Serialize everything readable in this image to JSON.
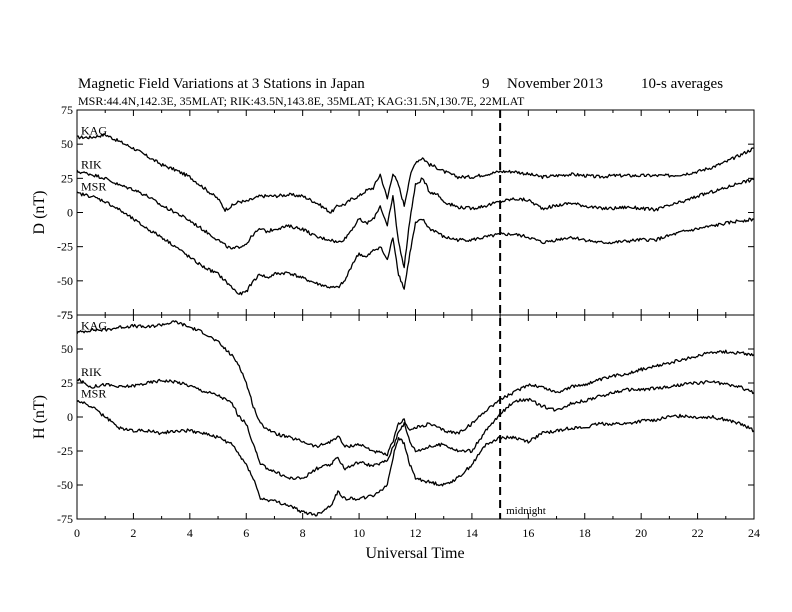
{
  "chart_data": [
    {
      "type": "line",
      "panel": "D",
      "title": "Magnetic Field Variations at 3 Stations in Japan",
      "date_day": "9",
      "date_month": "November",
      "date_year": "2013",
      "averaging": "10-s averages",
      "subtitle": "MSR:44.4N,142.3E, 35MLAT;   RIK:43.5N,143.8E, 35MLAT;   KAG:31.5N,130.7E, 22MLAT",
      "xlabel": "Universal Time",
      "ylabel": "D (nT)",
      "xlim": [
        0,
        24
      ],
      "ylim": [
        -75,
        75
      ],
      "x_ticks": [
        "0",
        "2",
        "4",
        "6",
        "8",
        "10",
        "12",
        "14",
        "16",
        "18",
        "20",
        "22",
        "24"
      ],
      "y_ticks": [
        "75",
        "50",
        "25",
        "0",
        "-25",
        "-50",
        "-75"
      ],
      "x": [
        0,
        0.5,
        1,
        1.5,
        2,
        2.5,
        3,
        3.5,
        4,
        4.5,
        5,
        5.25,
        5.5,
        5.75,
        6,
        6.25,
        6.5,
        6.75,
        7,
        7.5,
        8,
        8.5,
        9,
        9.25,
        9.5,
        9.75,
        10,
        10.25,
        10.5,
        10.75,
        11,
        11.2,
        11.4,
        11.6,
        11.8,
        12,
        12.25,
        12.5,
        12.75,
        13,
        13.5,
        14,
        14.5,
        15,
        15.5,
        16,
        16.5,
        17,
        17.5,
        18,
        18.5,
        19,
        19.5,
        20,
        20.5,
        21,
        21.5,
        22,
        22.5,
        23,
        23.5,
        24
      ],
      "series": [
        {
          "name": "KAG",
          "values": [
            55,
            55,
            57,
            52,
            47,
            41,
            35,
            31,
            26,
            18,
            10,
            2,
            5,
            8,
            8,
            10,
            12,
            12,
            12,
            13,
            12,
            7,
            0,
            5,
            6,
            10,
            12,
            16,
            18,
            28,
            10,
            29,
            20,
            5,
            26,
            37,
            40,
            35,
            33,
            30,
            26,
            26,
            28,
            30,
            30,
            28,
            26,
            27,
            28,
            27,
            26,
            27,
            27,
            27,
            27,
            27,
            28,
            30,
            33,
            37,
            42,
            47
          ]
        },
        {
          "name": "RIK",
          "values": [
            30,
            28,
            25,
            20,
            17,
            12,
            5,
            0,
            -6,
            -13,
            -20,
            -24,
            -27,
            -25,
            -23,
            -16,
            -12,
            -14,
            -12,
            -10,
            -12,
            -18,
            -20,
            -22,
            -19,
            -12,
            -5,
            -8,
            -5,
            5,
            -10,
            12,
            -22,
            -40,
            -5,
            20,
            25,
            15,
            14,
            8,
            4,
            3,
            5,
            8,
            10,
            9,
            3,
            5,
            7,
            5,
            3,
            3,
            4,
            3,
            2,
            5,
            8,
            12,
            15,
            18,
            22,
            24
          ]
        },
        {
          "name": "MSR",
          "values": [
            14,
            12,
            8,
            2,
            -5,
            -12,
            -18,
            -25,
            -33,
            -40,
            -45,
            -50,
            -55,
            -60,
            -58,
            -50,
            -45,
            -48,
            -45,
            -44,
            -48,
            -52,
            -55,
            -55,
            -50,
            -38,
            -30,
            -33,
            -28,
            -25,
            -35,
            -18,
            -45,
            -56,
            -30,
            -8,
            -5,
            -12,
            -14,
            -18,
            -20,
            -20,
            -18,
            -16,
            -16,
            -18,
            -22,
            -20,
            -18,
            -20,
            -22,
            -22,
            -21,
            -20,
            -20,
            -17,
            -14,
            -12,
            -10,
            -8,
            -6,
            -5
          ]
        }
      ]
    },
    {
      "type": "line",
      "panel": "H",
      "xlabel": "Universal Time",
      "ylabel": "H (nT)",
      "xlim": [
        0,
        24
      ],
      "ylim": [
        -75,
        75
      ],
      "x_ticks": [
        "0",
        "2",
        "4",
        "6",
        "8",
        "10",
        "12",
        "14",
        "16",
        "18",
        "20",
        "22",
        "24"
      ],
      "y_ticks": [
        "75",
        "50",
        "25",
        "0",
        "-25",
        "-50",
        "-75"
      ],
      "annotation": "midnight",
      "vertical_line_x": 15,
      "x": [
        0,
        0.5,
        1,
        1.5,
        2,
        2.5,
        3,
        3.5,
        4,
        4.5,
        5,
        5.5,
        5.75,
        6,
        6.25,
        6.5,
        7,
        7.5,
        8,
        8.5,
        9,
        9.25,
        9.5,
        10,
        10.5,
        11,
        11.25,
        11.4,
        11.6,
        11.8,
        12,
        12.5,
        13,
        13.5,
        14,
        14.5,
        15,
        15.5,
        16,
        16.5,
        17,
        17.5,
        18,
        18.5,
        19,
        19.5,
        20,
        20.5,
        21,
        21.5,
        22,
        22.5,
        23,
        23.5,
        24
      ],
      "series": [
        {
          "name": "KAG",
          "values": [
            62,
            64,
            64,
            66,
            67,
            66,
            68,
            70,
            66,
            62,
            55,
            45,
            38,
            25,
            8,
            -5,
            -12,
            -15,
            -18,
            -22,
            -18,
            -14,
            -22,
            -20,
            -25,
            -28,
            -15,
            -5,
            -2,
            -10,
            -8,
            -5,
            -10,
            -12,
            -5,
            5,
            13,
            18,
            24,
            22,
            18,
            22,
            24,
            27,
            30,
            32,
            35,
            37,
            40,
            42,
            45,
            48,
            48,
            47,
            46
          ]
        },
        {
          "name": "RIK",
          "values": [
            28,
            22,
            24,
            22,
            23,
            25,
            27,
            26,
            23,
            19,
            16,
            10,
            0,
            -5,
            -20,
            -35,
            -40,
            -45,
            -45,
            -38,
            -35,
            -30,
            -38,
            -33,
            -36,
            -32,
            -20,
            -10,
            -5,
            -18,
            -25,
            -22,
            -20,
            -25,
            -25,
            -10,
            2,
            12,
            13,
            8,
            5,
            10,
            12,
            15,
            18,
            20,
            20,
            21,
            22,
            24,
            25,
            26,
            24,
            22,
            18
          ]
        },
        {
          "name": "MSR",
          "values": [
            12,
            8,
            0,
            -8,
            -10,
            -10,
            -12,
            -10,
            -10,
            -12,
            -15,
            -20,
            -28,
            -35,
            -45,
            -60,
            -62,
            -65,
            -70,
            -72,
            -65,
            -55,
            -60,
            -60,
            -58,
            -50,
            -25,
            -15,
            -20,
            -35,
            -45,
            -48,
            -50,
            -45,
            -35,
            -20,
            -15,
            -15,
            -18,
            -12,
            -10,
            -8,
            -8,
            -5,
            -5,
            -5,
            -3,
            -2,
            0,
            1,
            0,
            0,
            -2,
            -5,
            -10
          ]
        }
      ]
    }
  ]
}
